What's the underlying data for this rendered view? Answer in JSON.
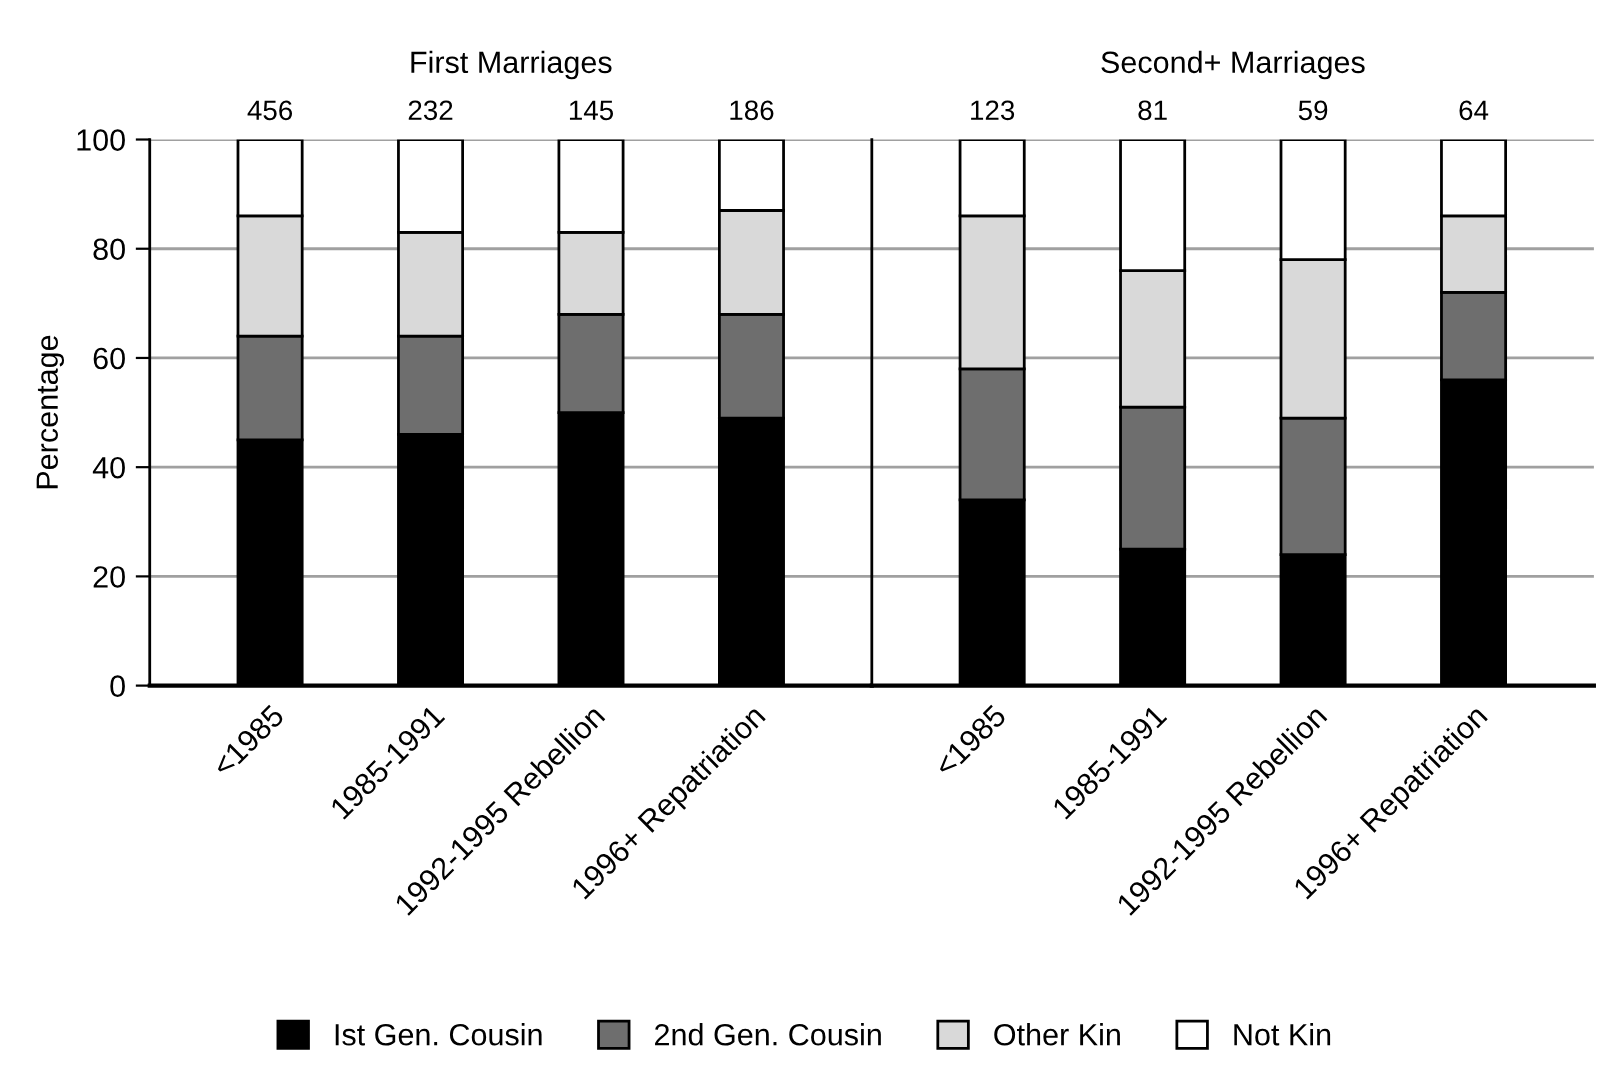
{
  "chart_data": [
    {
      "type": "bar",
      "title": "First Marriages",
      "ylabel": "Percentage",
      "stacked": true,
      "categories": [
        "<1985",
        "1985-1991",
        "1992-1995 Rebellion",
        "1996+ Repatriation"
      ],
      "series": [
        {
          "name": "Ist Gen. Cousin",
          "color": "#000000",
          "values": [
            45,
            46,
            50,
            49
          ]
        },
        {
          "name": "2nd Gen. Cousin",
          "color": "#6e6e6e",
          "values": [
            19,
            18,
            18,
            19
          ]
        },
        {
          "name": "Other Kin",
          "color": "#d9d9d9",
          "values": [
            22,
            19,
            15,
            19
          ]
        },
        {
          "name": "Not Kin",
          "color": "#ffffff",
          "values": [
            14,
            17,
            17,
            13
          ]
        }
      ],
      "annotations": [
        {
          "text": "456",
          "x": "<1985",
          "y": 100
        },
        {
          "text": "232",
          "x": "1985-1991",
          "y": 100
        },
        {
          "text": "145",
          "x": "1992-1995 Rebellion",
          "y": 100
        },
        {
          "text": "186",
          "x": "1996+ Repatriation",
          "y": 100
        }
      ],
      "ylim": [
        0,
        100
      ],
      "yticks": [
        0,
        20,
        40,
        60,
        80,
        100
      ],
      "grid": "y",
      "legend": "bottom"
    },
    {
      "type": "bar",
      "title": "Second+ Marriages",
      "stacked": true,
      "categories": [
        "<1985",
        "1985-1991",
        "1992-1995 Rebellion",
        "1996+ Repatriation"
      ],
      "series": [
        {
          "color": "#000000",
          "values": [
            34,
            25,
            24,
            56
          ]
        },
        {
          "color": "#6e6e6e",
          "values": [
            24,
            26,
            25,
            16
          ]
        },
        {
          "color": "#d9d9d9",
          "values": [
            28,
            25,
            29,
            14
          ]
        },
        {
          "color": "#ffffff",
          "values": [
            14,
            24,
            22,
            14
          ]
        }
      ],
      "annotations": [
        {
          "text": "123",
          "x": "<1985",
          "y": 100
        },
        {
          "text": "81",
          "x": "1985-1991",
          "y": 100
        },
        {
          "text": "59",
          "x": "1992-1995 Rebellion",
          "y": 100
        },
        {
          "text": "64",
          "x": "1996+ Repatriation",
          "y": 100
        }
      ],
      "ylim": [
        0,
        100
      ],
      "yticks": [
        0,
        20,
        40,
        60,
        80,
        100
      ],
      "grid": "y",
      "tick_labels": "x",
      "legend": false
    }
  ]
}
